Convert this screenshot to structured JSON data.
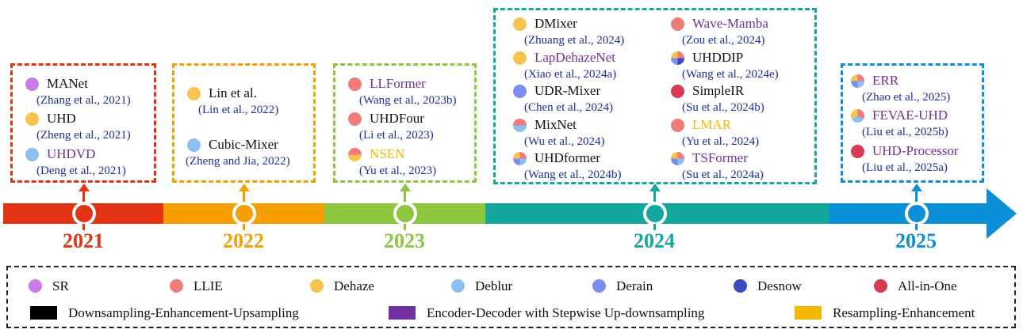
{
  "colors": {
    "sr": "#c77de8",
    "llie": "#ef7b7b",
    "dehaze": "#f7c54f",
    "deblur": "#8ec0ef",
    "derain": "#7b8ef0",
    "desnow": "#3b4bbf",
    "allinone": "#d63a55",
    "des": "#000000",
    "encdec": "#7030a0",
    "resamp": "#f5b800",
    "y2021": "#e33312",
    "y2022": "#f5a000",
    "y2023": "#8dc63f",
    "y2024": "#13a89e",
    "y2025": "#0b8fd6"
  },
  "years": {
    "y2021": "2021",
    "y2022": "2022",
    "y2023": "2023",
    "y2024": "2024",
    "y2025": "2025"
  },
  "entries": {
    "manet": {
      "name": "MANet",
      "cite": "(Zhang et al., 2021)",
      "icon": "sr-dot"
    },
    "uhd": {
      "name": "UHD",
      "cite": "(Zheng et al., 2021)",
      "icon": "dehaze-dot"
    },
    "uhdvd": {
      "name": "UHDVD",
      "cite": "(Deng et al., 2021)",
      "icon": "deblur-dot"
    },
    "lin": {
      "name": "Lin et al.",
      "cite": "(Lin et al., 2022)",
      "icon": "dehaze-dot"
    },
    "cubic": {
      "name": "Cubic-Mixer",
      "cite": "(Zheng and Jia, 2022)",
      "icon": "deblur-dot"
    },
    "llformer": {
      "name": "LLFormer",
      "cite": "(Wang et al., 2023b)",
      "icon": "llie-dot"
    },
    "uhdfour": {
      "name": "UHDFour",
      "cite": "(Li et al., 2023)",
      "icon": "llie-dot"
    },
    "nsen": {
      "name": "NSEN",
      "cite": "(Yu et al., 2023)",
      "icon": "llie-dehaze-dot"
    },
    "dmixer": {
      "name": "DMixer",
      "cite": "(Zhuang et al., 2024)",
      "icon": "dehaze-dot"
    },
    "lapdehaze": {
      "name": "LapDehazeNet",
      "cite": "(Xiao et al., 2024a)",
      "icon": "dehaze-dot"
    },
    "udrmixer": {
      "name": "UDR-Mixer",
      "cite": "(Chen et al., 2024)",
      "icon": "derain-dot"
    },
    "mixnet": {
      "name": "MixNet",
      "cite": "(Wu et al., 2024)",
      "icon": "llie-deblur-dot"
    },
    "uhdformer": {
      "name": "UHDformer",
      "cite": "(Wang et al., 2024b)",
      "icon": "multi-dot"
    },
    "wavemamba": {
      "name": "Wave-Mamba",
      "cite": "(Zou et al., 2024)",
      "icon": "llie-dot"
    },
    "uhddip": {
      "name": "UHDDIP",
      "cite": "(Wang et al., 2024e)",
      "icon": "multi-dot"
    },
    "simpleir": {
      "name": "SimpleIR",
      "cite": "(Su et al., 2024b)",
      "icon": "allinone-dot"
    },
    "lmar": {
      "name": "LMAR",
      "cite": "(Yu et al., 2024)",
      "icon": "llie-dot"
    },
    "tsformer": {
      "name": "TSFormer",
      "cite": "(Su et al., 2024a)",
      "icon": "multi-dot"
    },
    "err": {
      "name": "ERR",
      "cite": "(Zhao et al., 2025)",
      "icon": "multi-dot"
    },
    "fevae": {
      "name": "FEVAE-UHD",
      "cite": "(Liu et al., 2025b)",
      "icon": "multi-dot"
    },
    "uhdproc": {
      "name": "UHD-Processor",
      "cite": "(Liu et al., 2025a)",
      "icon": "allinone-dot"
    }
  },
  "legend": {
    "sr": "SR",
    "llie": "LLIE",
    "dehaze": "Dehaze",
    "deblur": "Deblur",
    "derain": "Derain",
    "desnow": "Desnow",
    "allinone": "All-in-One",
    "des": "Downsampling-Enhancement-Upsampling",
    "encdec": "Encoder-Decoder with Stepwise Up-downsampling",
    "resamp": "Resampling-Enhancement"
  }
}
